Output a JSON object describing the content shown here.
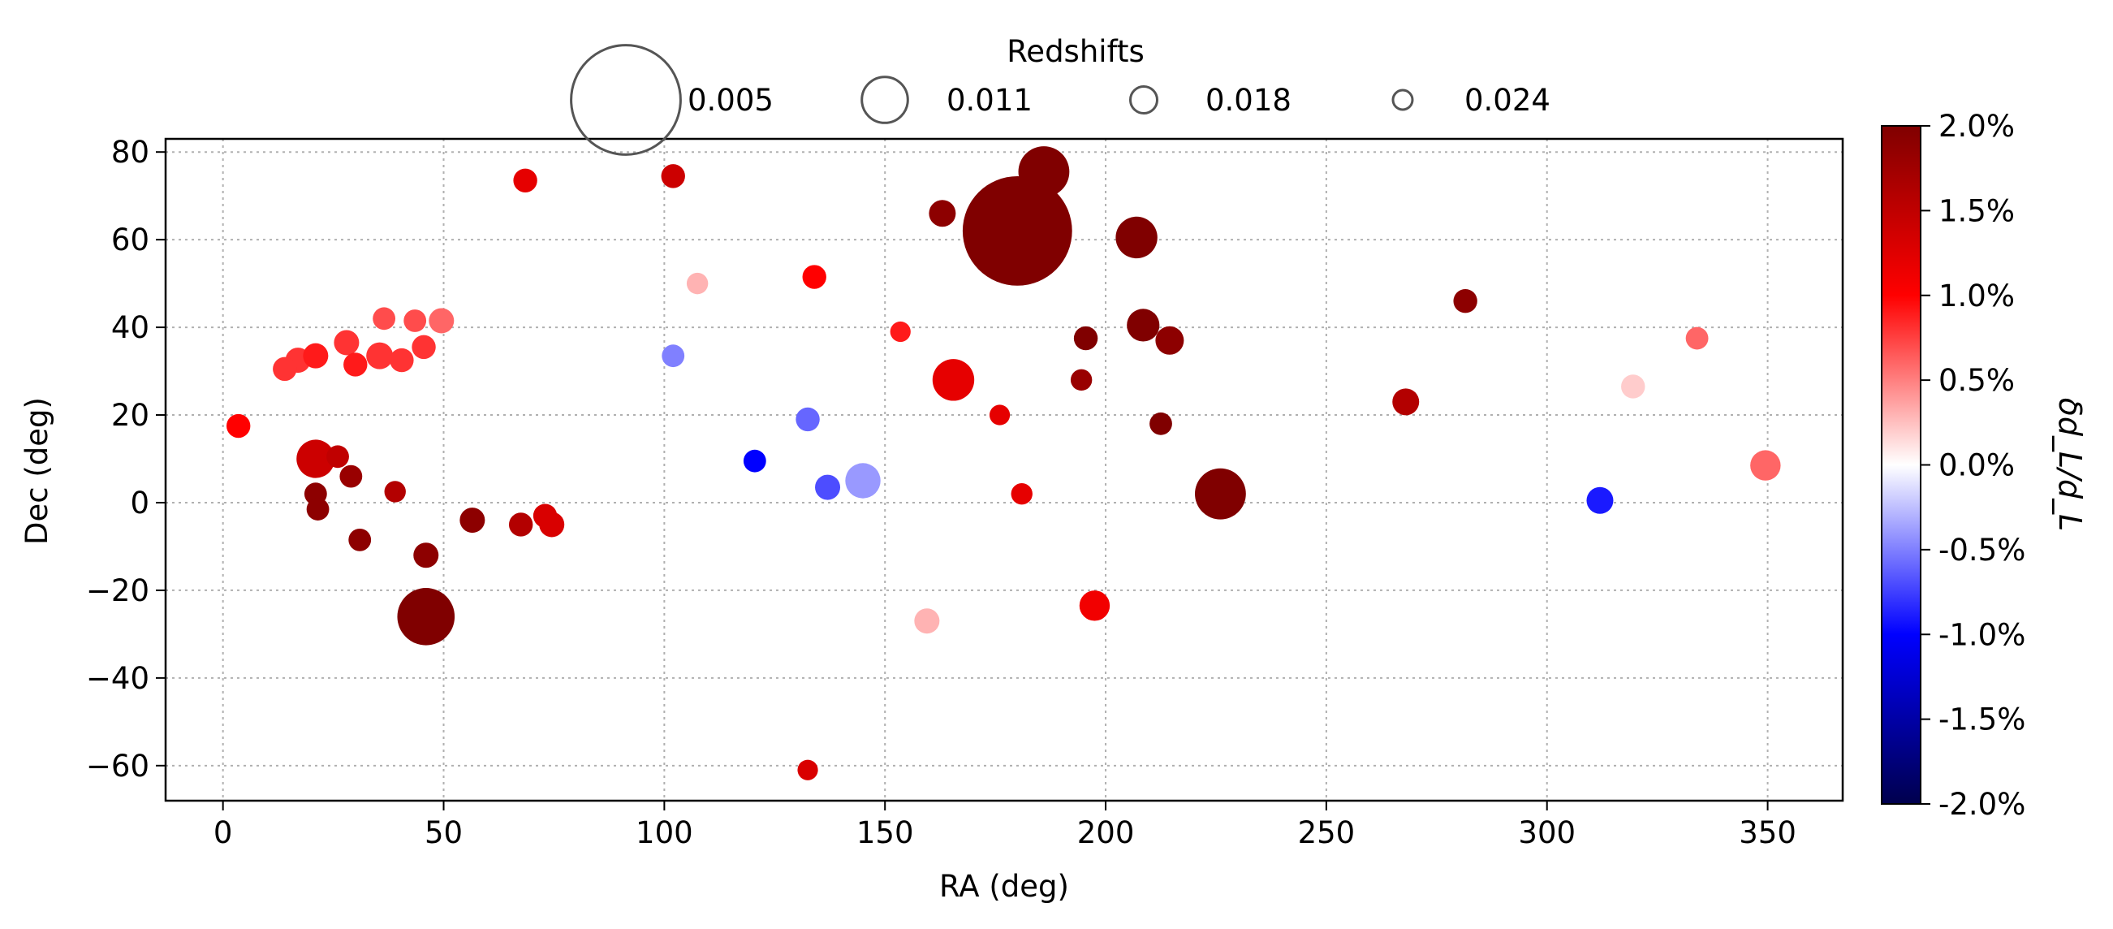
{
  "chart_data": {
    "type": "scatter",
    "xlabel": "RA (deg)",
    "ylabel": "Dec (deg)",
    "xlim": [
      -13,
      367
    ],
    "ylim": [
      -68,
      83
    ],
    "xticks": [
      0,
      50,
      100,
      150,
      200,
      250,
      300,
      350
    ],
    "yticks": [
      -60,
      -40,
      -20,
      0,
      20,
      40,
      60,
      80
    ],
    "ytick_labels": [
      "−60",
      "−40",
      "−20",
      "0",
      "20",
      "40",
      "60",
      "80"
    ],
    "grid": true,
    "legend": {
      "title": "Redshifts",
      "placement": "top-center",
      "entries": [
        {
          "label": "0.005",
          "z": 0.005
        },
        {
          "label": "0.011",
          "z": 0.011
        },
        {
          "label": "0.018",
          "z": 0.018
        },
        {
          "label": "0.024",
          "z": 0.024
        }
      ]
    },
    "colorbar": {
      "label": "δd_L/d_L",
      "range": [
        -2.0,
        2.0
      ],
      "ticks": [
        2.0,
        1.5,
        1.0,
        0.5,
        0.0,
        -0.5,
        -1.0,
        -1.5,
        -2.0
      ],
      "tick_labels": [
        "2.0%",
        "1.5%",
        "1.0%",
        "0.5%",
        "0.0%",
        "-0.5%",
        "-1.0%",
        "-1.5%",
        "-2.0%"
      ],
      "colormap": [
        "#00004d",
        "#0000ff",
        "#ffffff",
        "#ff0000",
        "#800000"
      ]
    },
    "points": [
      {
        "ra": 3.5,
        "dec": 17.5,
        "z": 0.02,
        "c": 1.0
      },
      {
        "ra": 14,
        "dec": 30.5,
        "z": 0.02,
        "c": 0.8
      },
      {
        "ra": 17,
        "dec": 32.5,
        "z": 0.019,
        "c": 0.8
      },
      {
        "ra": 21,
        "dec": 33.5,
        "z": 0.019,
        "c": 0.9
      },
      {
        "ra": 28,
        "dec": 36.5,
        "z": 0.019,
        "c": 0.8
      },
      {
        "ra": 30,
        "dec": 31.5,
        "z": 0.02,
        "c": 0.9
      },
      {
        "ra": 35.5,
        "dec": 33.5,
        "z": 0.018,
        "c": 0.8
      },
      {
        "ra": 36.5,
        "dec": 42,
        "z": 0.021,
        "c": 0.7
      },
      {
        "ra": 40.5,
        "dec": 32.5,
        "z": 0.02,
        "c": 0.8
      },
      {
        "ra": 43.5,
        "dec": 41.5,
        "z": 0.021,
        "c": 0.7
      },
      {
        "ra": 45.5,
        "dec": 35.5,
        "z": 0.02,
        "c": 0.8
      },
      {
        "ra": 49.5,
        "dec": 41.5,
        "z": 0.019,
        "c": 0.6
      },
      {
        "ra": 21,
        "dec": 10,
        "z": 0.013,
        "c": 1.4
      },
      {
        "ra": 26,
        "dec": 10.5,
        "z": 0.021,
        "c": 1.5
      },
      {
        "ra": 29,
        "dec": 6,
        "z": 0.021,
        "c": 1.8
      },
      {
        "ra": 21,
        "dec": 2,
        "z": 0.021,
        "c": 1.9
      },
      {
        "ra": 21.5,
        "dec": -1.5,
        "z": 0.021,
        "c": 1.9
      },
      {
        "ra": 39,
        "dec": 2.5,
        "z": 0.022,
        "c": 1.6
      },
      {
        "ra": 31,
        "dec": -8.5,
        "z": 0.021,
        "c": 1.9
      },
      {
        "ra": 46,
        "dec": -12,
        "z": 0.019,
        "c": 1.9
      },
      {
        "ra": 46,
        "dec": -26,
        "z": 0.009,
        "c": 2.0
      },
      {
        "ra": 56.5,
        "dec": -4,
        "z": 0.019,
        "c": 1.9
      },
      {
        "ra": 68.5,
        "dec": 73.5,
        "z": 0.02,
        "c": 1.2
      },
      {
        "ra": 67.5,
        "dec": -5,
        "z": 0.02,
        "c": 1.6
      },
      {
        "ra": 73,
        "dec": -3,
        "z": 0.02,
        "c": 1.3
      },
      {
        "ra": 74.5,
        "dec": -5,
        "z": 0.019,
        "c": 1.3
      },
      {
        "ra": 102,
        "dec": 74.5,
        "z": 0.02,
        "c": 1.4
      },
      {
        "ra": 107.5,
        "dec": 50,
        "z": 0.022,
        "c": 0.3
      },
      {
        "ra": 102,
        "dec": 33.5,
        "z": 0.021,
        "c": -0.5
      },
      {
        "ra": 120.5,
        "dec": 9.5,
        "z": 0.021,
        "c": -1.0
      },
      {
        "ra": 132.5,
        "dec": 19,
        "z": 0.02,
        "c": -0.6
      },
      {
        "ra": 137,
        "dec": 3.5,
        "z": 0.019,
        "c": -0.7
      },
      {
        "ra": 145,
        "dec": 5,
        "z": 0.014,
        "c": -0.4
      },
      {
        "ra": 134,
        "dec": 51.5,
        "z": 0.02,
        "c": 1.0
      },
      {
        "ra": 153.5,
        "dec": 39,
        "z": 0.023,
        "c": 0.9
      },
      {
        "ra": 132.5,
        "dec": -61,
        "z": 0.023,
        "c": 1.3
      },
      {
        "ra": 159.5,
        "dec": -27,
        "z": 0.019,
        "c": 0.3
      },
      {
        "ra": 163,
        "dec": 66,
        "z": 0.018,
        "c": 1.9
      },
      {
        "ra": 165.5,
        "dec": 28,
        "z": 0.012,
        "c": 1.2
      },
      {
        "ra": 176,
        "dec": 20,
        "z": 0.023,
        "c": 1.2
      },
      {
        "ra": 181,
        "dec": 2,
        "z": 0.022,
        "c": 1.2
      },
      {
        "ra": 180,
        "dec": 62,
        "z": 0.005,
        "c": 2.0
      },
      {
        "ra": 186,
        "dec": 75.5,
        "z": 0.01,
        "c": 2.0
      },
      {
        "ra": 194.5,
        "dec": 28,
        "z": 0.022,
        "c": 1.8
      },
      {
        "ra": 195.5,
        "dec": 37.5,
        "z": 0.02,
        "c": 2.0
      },
      {
        "ra": 197.5,
        "dec": -23.5,
        "z": 0.016,
        "c": 1.1
      },
      {
        "ra": 207,
        "dec": 60.5,
        "z": 0.012,
        "c": 2.0
      },
      {
        "ra": 208.5,
        "dec": 40.5,
        "z": 0.015,
        "c": 2.0
      },
      {
        "ra": 212.5,
        "dec": 18,
        "z": 0.021,
        "c": 2.0
      },
      {
        "ra": 214.5,
        "dec": 37,
        "z": 0.017,
        "c": 1.9
      },
      {
        "ra": 226,
        "dec": 2,
        "z": 0.01,
        "c": 2.0
      },
      {
        "ra": 268,
        "dec": 23,
        "z": 0.018,
        "c": 1.6
      },
      {
        "ra": 281.5,
        "dec": 46,
        "z": 0.02,
        "c": 1.9
      },
      {
        "ra": 312,
        "dec": 0.5,
        "z": 0.018,
        "c": -0.9
      },
      {
        "ra": 319.5,
        "dec": 26.5,
        "z": 0.02,
        "c": 0.2
      },
      {
        "ra": 334,
        "dec": 37.5,
        "z": 0.021,
        "c": 0.6
      },
      {
        "ra": 349.5,
        "dec": 8.5,
        "z": 0.016,
        "c": 0.6
      }
    ]
  }
}
